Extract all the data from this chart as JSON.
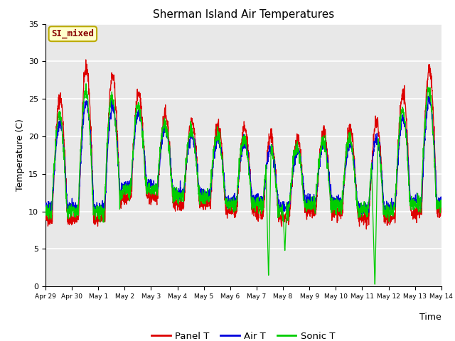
{
  "title": "Sherman Island Air Temperatures",
  "xlabel": "Time",
  "ylabel": "Temperature (C)",
  "ylim": [
    0,
    35
  ],
  "yticks": [
    0,
    5,
    10,
    15,
    20,
    25,
    30,
    35
  ],
  "line_colors": {
    "panel": "#dd0000",
    "air": "#0000dd",
    "sonic": "#00cc00"
  },
  "legend_labels": [
    "Panel T",
    "Air T",
    "Sonic T"
  ],
  "label_box_text": "SI_mixed",
  "label_box_facecolor": "#ffffcc",
  "label_box_edgecolor": "#bbaa00",
  "label_box_text_color": "#880000",
  "plot_bg_color": "#e8e8e8",
  "xtick_labels": [
    "Apr 29",
    "Apr 30",
    "May 1",
    "May 2",
    "May 3",
    "May 4",
    "May 5",
    "May 6",
    "May 7",
    "May 8",
    "May 9",
    "May 10",
    "May 11",
    "May 12",
    "May 13",
    "May 14"
  ],
  "xtick_positions": [
    0,
    1,
    2,
    3,
    4,
    5,
    6,
    7,
    8,
    9,
    10,
    11,
    12,
    13,
    14,
    15
  ]
}
